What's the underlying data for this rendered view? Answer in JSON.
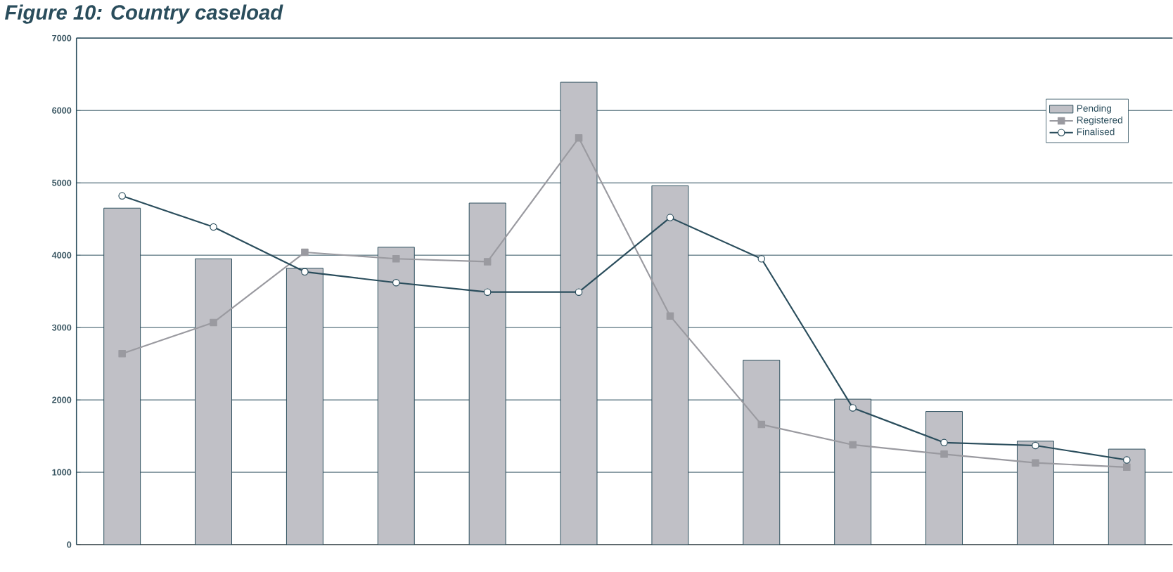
{
  "chart_data": {
    "type": "bar",
    "title": "Figure 10: Country caseload",
    "categories": [
      null,
      null,
      null,
      null,
      null,
      null,
      null,
      null,
      null,
      null,
      null,
      null
    ],
    "series": [
      {
        "name": "Pending",
        "color": "#c0c0c6",
        "values": [
          4650,
          3950,
          3820,
          4110,
          4720,
          6390,
          4960,
          2550,
          2010,
          1840,
          1430,
          1320
        ]
      },
      {
        "name": "Registered",
        "type": "line",
        "color": "#9a9aa0",
        "marker": "square",
        "values": [
          2640,
          3070,
          4040,
          3950,
          3910,
          5620,
          3160,
          1660,
          1380,
          1250,
          1130,
          1070
        ]
      },
      {
        "name": "Finalised",
        "type": "line",
        "color": "#2a4d5c",
        "marker": "circle",
        "values": [
          4820,
          4390,
          3770,
          3620,
          3490,
          3490,
          4520,
          3950,
          1890,
          1410,
          1370,
          1170
        ]
      }
    ],
    "ylim": [
      0,
      7000
    ],
    "yticks": [
      0,
      1000,
      2000,
      3000,
      4000,
      5000,
      6000,
      7000
    ],
    "grid": "y",
    "legend": "top right",
    "tick_labels": "y"
  }
}
